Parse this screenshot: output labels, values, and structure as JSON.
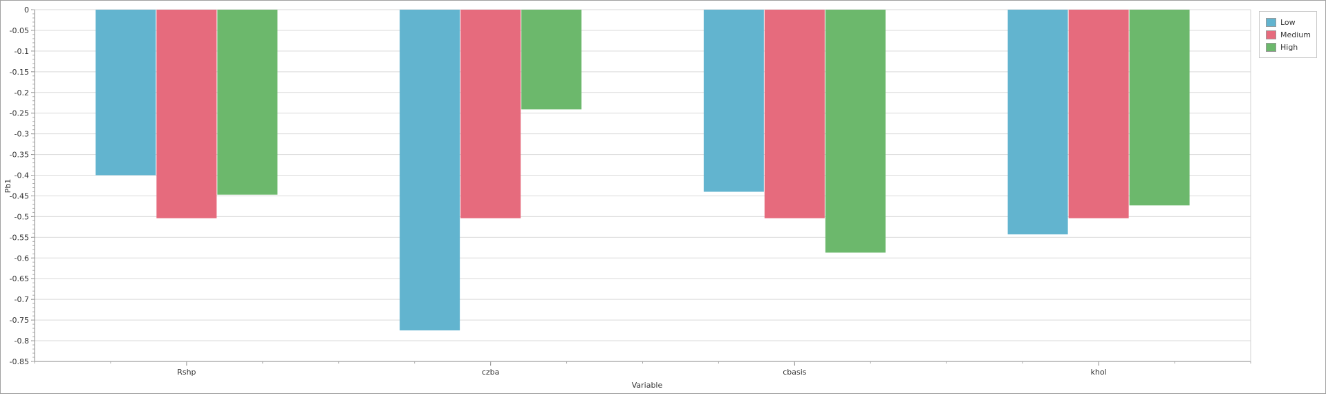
{
  "chart_data": {
    "type": "bar",
    "title": "",
    "xlabel": "Variable",
    "ylabel": "Pb1",
    "categories": [
      "Rshp",
      "czba",
      "cbasis",
      "khol"
    ],
    "series": [
      {
        "name": "Low",
        "color": "#62b4cf",
        "values": [
          -0.4,
          -0.775,
          -0.44,
          -0.543
        ]
      },
      {
        "name": "Medium",
        "color": "#e66b7d",
        "values": [
          -0.504,
          -0.504,
          -0.504,
          -0.504
        ]
      },
      {
        "name": "High",
        "color": "#6cb86c",
        "values": [
          -0.447,
          -0.241,
          -0.587,
          -0.473
        ]
      }
    ],
    "ylim": [
      -0.85,
      0
    ],
    "yticks": [
      "0",
      "-0.05",
      "-0.1",
      "-0.15",
      "-0.2",
      "-0.25",
      "-0.3",
      "-0.35",
      "-0.4",
      "-0.45",
      "-0.5",
      "-0.55",
      "-0.6",
      "-0.65",
      "-0.7",
      "-0.75",
      "-0.8",
      "-0.85"
    ],
    "grid": true,
    "legend_position": "top-right"
  }
}
